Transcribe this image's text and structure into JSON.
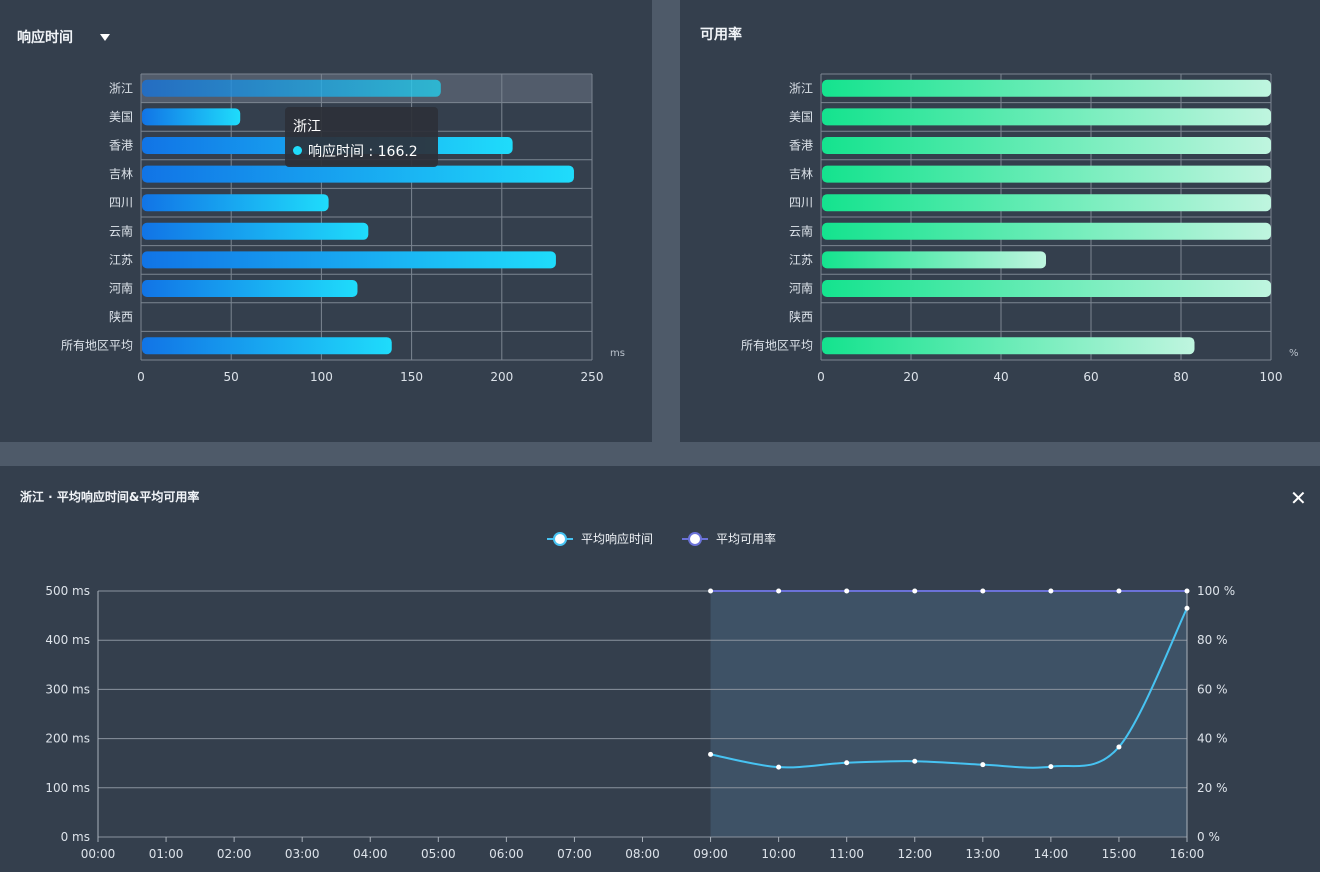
{
  "panels": {
    "response": {
      "title": "响应时间",
      "tooltip": {
        "region": "浙江",
        "label": "响应时间",
        "value": "166.2"
      }
    },
    "availability": {
      "title": "可用率"
    },
    "detail": {
      "title": "浙江 · 平均响应时间&平均可用率",
      "close": "✕"
    }
  },
  "chart_data": [
    {
      "type": "bar",
      "orientation": "horizontal",
      "title": "响应时间",
      "categories": [
        "浙江",
        "美国",
        "香港",
        "吉林",
        "四川",
        "云南",
        "江苏",
        "河南",
        "陕西",
        "所有地区平均"
      ],
      "values": [
        166.2,
        55,
        206,
        240,
        104,
        126,
        230,
        120,
        null,
        139
      ],
      "xlim": [
        0,
        250
      ],
      "xticks": [
        "0",
        "50",
        "100",
        "150",
        "200",
        "250"
      ],
      "unit": "ms",
      "highlighted": "浙江",
      "colors": {
        "start": "#1174e6",
        "end": "#1fdcfb"
      }
    },
    {
      "type": "bar",
      "orientation": "horizontal",
      "title": "可用率",
      "categories": [
        "浙江",
        "美国",
        "香港",
        "吉林",
        "四川",
        "云南",
        "江苏",
        "河南",
        "陕西",
        "所有地区平均"
      ],
      "values": [
        100,
        100,
        100,
        100,
        100,
        100,
        50,
        100,
        null,
        83
      ],
      "xlim": [
        0,
        100
      ],
      "xticks": [
        "0",
        "20",
        "40",
        "60",
        "80",
        "100"
      ],
      "unit": "%",
      "colors": {
        "start": "#14e38e",
        "end": "#bff5df"
      }
    },
    {
      "type": "line",
      "title": "浙江 · 平均响应时间&平均可用率",
      "x": [
        "00:00",
        "01:00",
        "02:00",
        "03:00",
        "04:00",
        "05:00",
        "06:00",
        "07:00",
        "08:00",
        "09:00",
        "10:00",
        "11:00",
        "12:00",
        "13:00",
        "14:00",
        "15:00",
        "16:00"
      ],
      "series": [
        {
          "name": "平均响应时间",
          "axis": "left",
          "color": "#47c3f2",
          "values": [
            null,
            null,
            null,
            null,
            null,
            null,
            null,
            null,
            null,
            168,
            142,
            151,
            154,
            147,
            143,
            183,
            465
          ]
        },
        {
          "name": "平均可用率",
          "axis": "right",
          "color": "#6b72d8",
          "values": [
            null,
            null,
            null,
            null,
            null,
            null,
            null,
            null,
            null,
            100,
            100,
            100,
            100,
            100,
            100,
            100,
            100
          ]
        }
      ],
      "ylim_left": [
        0,
        500
      ],
      "ylim_right": [
        0,
        100
      ],
      "yticks_left": [
        "0 ms",
        "100 ms",
        "200 ms",
        "300 ms",
        "400 ms",
        "500 ms"
      ],
      "yticks_right": [
        "0 %",
        "20 %",
        "40 %",
        "60 %",
        "80 %",
        "100 %"
      ],
      "shaded_from": "09:00",
      "shaded_to": "16:00"
    }
  ]
}
